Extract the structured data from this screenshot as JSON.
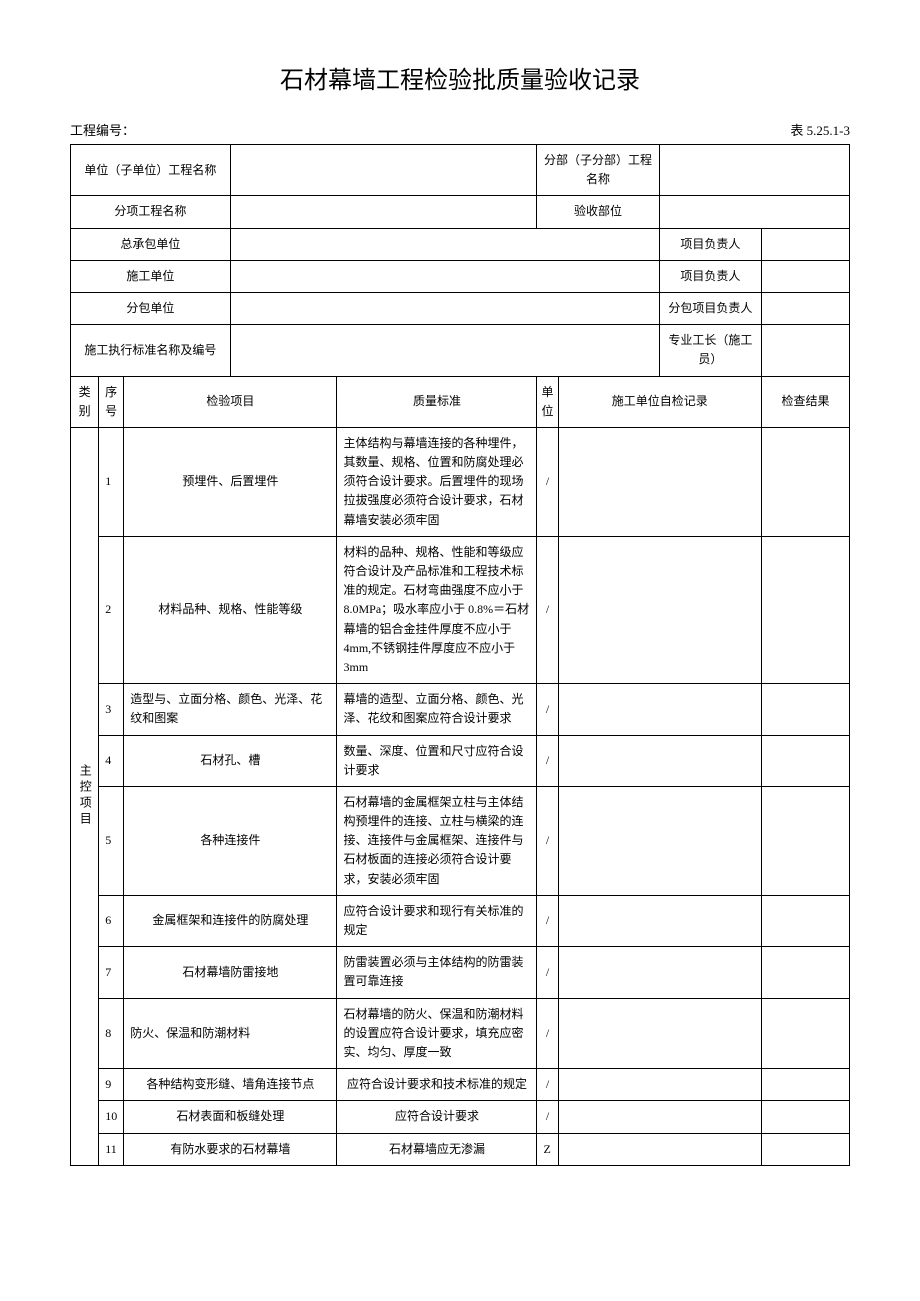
{
  "title": "石材幕墙工程检验批质量验收记录",
  "project_number_label": "工程编号：",
  "table_number": "表 5.25.1-3",
  "header": {
    "unit_project_label": "单位（子单位）工程名称",
    "sub_project_label": "分部（子分部）工程名称",
    "division_label": "分项工程名称",
    "acceptance_part_label": "验收部位",
    "general_contractor_label": "总承包单位",
    "project_manager_label": "项目负责人",
    "construction_unit_label": "施工单位",
    "subcontractor_label": "分包单位",
    "sub_project_manager_label": "分包项目负责人",
    "standard_name_label": "施工执行标准名称及编号",
    "foreman_label": "专业工长（施工员）"
  },
  "columns": {
    "category": "类别",
    "sequence": "序号",
    "inspection_item": "检验项目",
    "quality_standard": "质量标准",
    "unit": "单位",
    "self_check_record": "施工单位自检记录",
    "check_result": "检查结果"
  },
  "category_label": "主控项目",
  "rows": [
    {
      "seq": "1",
      "item": "预埋件、后置埋件",
      "standard": "主体结构与幕墙连接的各种埋件，其数量、规格、位置和防腐处理必须符合设计要求。后置埋件的现场拉拔强度必须符合设计要求，石材幕墙安装必须牢固",
      "unit": "/"
    },
    {
      "seq": "2",
      "item": "材料品种、规格、性能等级",
      "standard": "材料的品种、规格、性能和等级应符合设计及产品标准和工程技术标准的规定。石材弯曲强度不应小于 8.0MPa；吸水率应小于 0.8%＝石材幕墙的铝合金挂件厚度不应小于 4mm,不锈钢挂件厚度应不应小于 3mm",
      "unit": "/"
    },
    {
      "seq": "3",
      "item": "造型与、立面分格、颜色、光泽、花纹和图案",
      "standard": "幕墙的造型、立面分格、颜色、光泽、花纹和图案应符合设计要求",
      "unit": "/"
    },
    {
      "seq": "4",
      "item": "石材孔、槽",
      "standard": "数量、深度、位置和尺寸应符合设计要求",
      "unit": "/"
    },
    {
      "seq": "5",
      "item": "各种连接件",
      "standard": "石材幕墙的金属框架立柱与主体结构预埋件的连接、立柱与横梁的连接、连接件与金属框架、连接件与石材板面的连接必须符合设计要求，安装必须牢固",
      "unit": "/"
    },
    {
      "seq": "6",
      "item": "金属框架和连接件的防腐处理",
      "standard": "应符合设计要求和现行有关标准的规定",
      "unit": "/"
    },
    {
      "seq": "7",
      "item": "石材幕墙防雷接地",
      "standard": "防雷装置必须与主体结构的防雷装置可靠连接",
      "unit": "/"
    },
    {
      "seq": "8",
      "item": "防火、保温和防潮材料",
      "standard": "石材幕墙的防火、保温和防潮材料的设置应符合设计要求，填充应密实、均匀、厚度一致",
      "unit": "/"
    },
    {
      "seq": "9",
      "item": "各种结构变形缝、墙角连接节点",
      "standard": "应符合设计要求和技术标准的规定",
      "unit": "/"
    },
    {
      "seq": "10",
      "item": "石材表面和板缝处理",
      "standard": "应符合设计要求",
      "unit": "/"
    },
    {
      "seq": "11",
      "item": "有防水要求的石材幕墙",
      "standard": "石材幕墙应无渗漏",
      "unit": "Z"
    }
  ]
}
